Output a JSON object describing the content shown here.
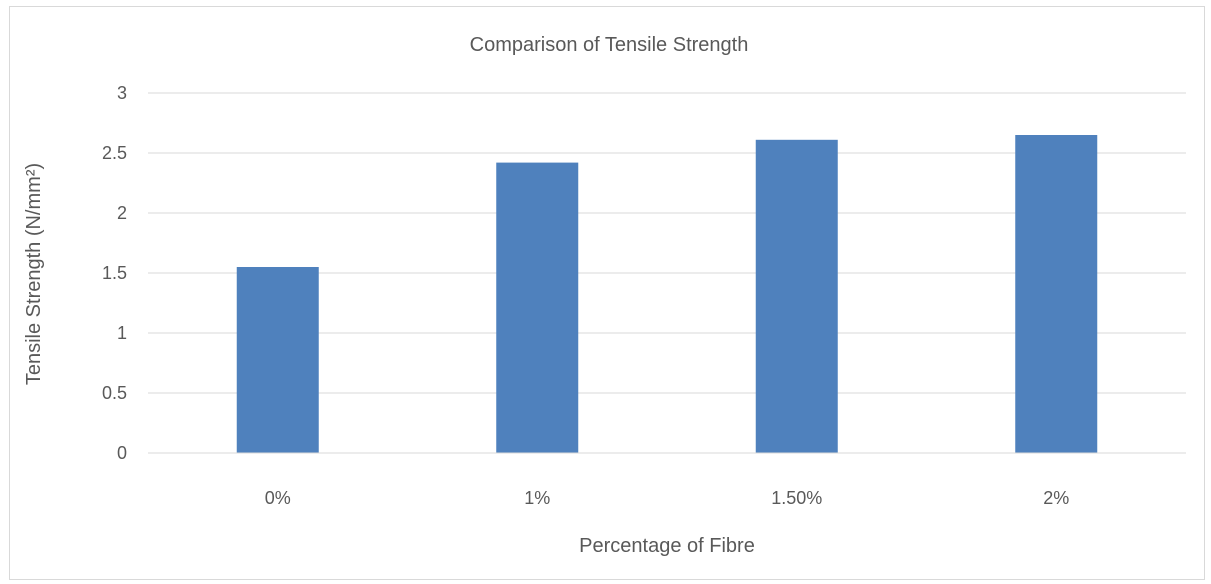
{
  "chart_data": {
    "type": "bar",
    "title": "Comparison of Tensile Strength",
    "xlabel": "Percentage of Fibre",
    "ylabel": "Tensile Strength (N/mm²)",
    "categories": [
      "0%",
      "1%",
      "1.50%",
      "2%"
    ],
    "values": [
      1.55,
      2.42,
      2.61,
      2.65
    ],
    "ylim": [
      0,
      3
    ],
    "yticks": [
      0,
      0.5,
      1,
      1.5,
      2,
      2.5,
      3
    ],
    "grid": true,
    "legend": "none",
    "bar_color": "#4f81bd"
  }
}
